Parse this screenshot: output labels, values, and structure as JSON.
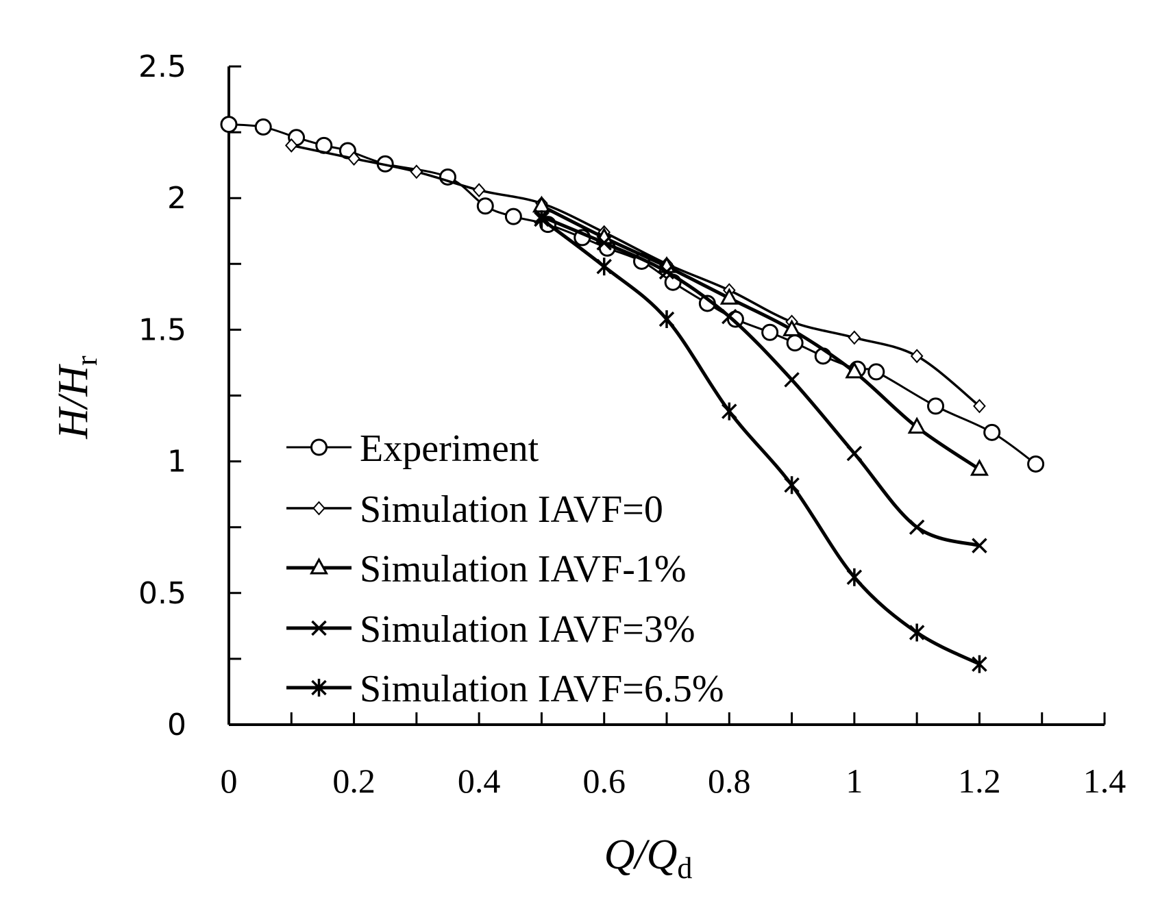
{
  "chart_data": {
    "type": "line",
    "title": "",
    "xlabel": {
      "main": "Q/Q",
      "sub": "d"
    },
    "ylabel": {
      "main": "H/H",
      "sub": "r"
    },
    "xlim": [
      0,
      1.4
    ],
    "ylim": [
      0,
      2.5
    ],
    "x_ticks": [
      "0",
      "0.2",
      "0.4",
      "0.6",
      "0.8",
      "1",
      "1.2",
      "1.4"
    ],
    "y_ticks": [
      "0",
      "0.5",
      "1",
      "1.5",
      "2",
      "2.5"
    ],
    "grid": false,
    "legend_position": "inside-left",
    "series": [
      {
        "name": "Experiment",
        "marker": "circle",
        "points": [
          [
            0.0,
            2.28
          ],
          [
            0.055,
            2.27
          ],
          [
            0.108,
            2.23
          ],
          [
            0.152,
            2.2
          ],
          [
            0.19,
            2.18
          ],
          [
            0.25,
            2.13
          ],
          [
            0.35,
            2.08
          ],
          [
            0.41,
            1.97
          ],
          [
            0.455,
            1.93
          ],
          [
            0.51,
            1.9
          ],
          [
            0.565,
            1.85
          ],
          [
            0.605,
            1.81
          ],
          [
            0.66,
            1.76
          ],
          [
            0.71,
            1.68
          ],
          [
            0.765,
            1.6
          ],
          [
            0.81,
            1.54
          ],
          [
            0.865,
            1.49
          ],
          [
            0.905,
            1.45
          ],
          [
            0.95,
            1.4
          ],
          [
            1.005,
            1.35
          ],
          [
            1.035,
            1.34
          ],
          [
            1.13,
            1.21
          ],
          [
            1.22,
            1.11
          ],
          [
            1.29,
            0.99
          ]
        ]
      },
      {
        "name": "Simulation IAVF=0",
        "marker": "diamond",
        "points": [
          [
            0.1,
            2.2
          ],
          [
            0.2,
            2.15
          ],
          [
            0.3,
            2.1
          ],
          [
            0.4,
            2.03
          ],
          [
            0.5,
            1.98
          ],
          [
            0.6,
            1.87
          ],
          [
            0.7,
            1.75
          ],
          [
            0.8,
            1.65
          ],
          [
            0.9,
            1.53
          ],
          [
            1.0,
            1.47
          ],
          [
            1.1,
            1.4
          ],
          [
            1.2,
            1.21
          ]
        ]
      },
      {
        "name": "Simulation IAVF-1%",
        "marker": "triangle",
        "points": [
          [
            0.5,
            1.97
          ],
          [
            0.6,
            1.85
          ],
          [
            0.7,
            1.74
          ],
          [
            0.8,
            1.62
          ],
          [
            0.9,
            1.5
          ],
          [
            1.0,
            1.34
          ],
          [
            1.1,
            1.13
          ],
          [
            1.2,
            0.97
          ]
        ]
      },
      {
        "name": "Simulation IAVF=3%",
        "marker": "x",
        "points": [
          [
            0.5,
            1.93
          ],
          [
            0.6,
            1.83
          ],
          [
            0.7,
            1.72
          ],
          [
            0.8,
            1.55
          ],
          [
            0.9,
            1.31
          ],
          [
            1.0,
            1.03
          ],
          [
            1.1,
            0.75
          ],
          [
            1.2,
            0.68
          ]
        ]
      },
      {
        "name": "Simulation IAVF=6.5%",
        "marker": "asterisk",
        "points": [
          [
            0.5,
            1.92
          ],
          [
            0.6,
            1.74
          ],
          [
            0.7,
            1.54
          ],
          [
            0.8,
            1.19
          ],
          [
            0.9,
            0.91
          ],
          [
            1.0,
            0.56
          ],
          [
            1.1,
            0.35
          ],
          [
            1.2,
            0.23
          ]
        ]
      }
    ]
  }
}
